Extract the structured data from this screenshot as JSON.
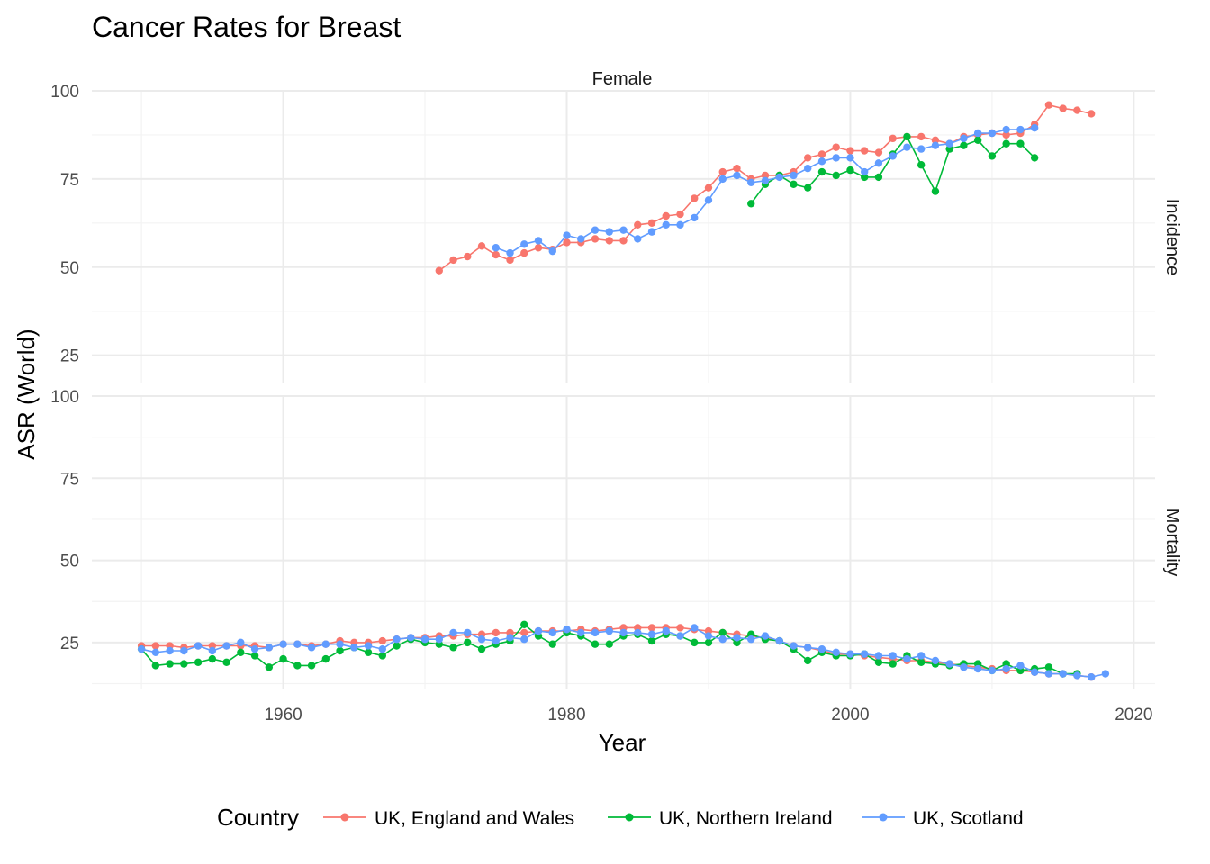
{
  "chart_data": {
    "type": "line",
    "title": "Cancer Rates for Breast",
    "xlabel": "Year",
    "ylabel": "ASR (World)",
    "column_strip": "Female",
    "legend_title": "Country",
    "legend_position": "bottom",
    "grid": true,
    "xlim": [
      1946.5,
      2021.5
    ],
    "xticks": [
      1960,
      1980,
      2000,
      2020
    ],
    "xtick_labels": [
      "1960",
      "1980",
      "2000",
      "2020"
    ],
    "colors": {
      "UK, England and Wales": "#F8766D",
      "UK, Northern Ireland": "#00BA38",
      "UK, Scotland": "#619CFF"
    },
    "panels": [
      {
        "strip": "Incidence",
        "ylim": [
          17,
          100
        ],
        "yticks": [
          25,
          50,
          75,
          100
        ],
        "ytick_labels": [
          "25",
          "50",
          "75",
          "100"
        ],
        "series": [
          {
            "name": "UK, England and Wales",
            "x": [
              1971,
              1972,
              1973,
              1974,
              1975,
              1976,
              1977,
              1978,
              1979,
              1980,
              1981,
              1982,
              1983,
              1984,
              1985,
              1986,
              1987,
              1988,
              1989,
              1990,
              1991,
              1992,
              1993,
              1994,
              1995,
              1996,
              1997,
              1998,
              1999,
              2000,
              2001,
              2002,
              2003,
              2004,
              2005,
              2006,
              2007,
              2008,
              2009,
              2010,
              2011,
              2012,
              2013,
              2014,
              2015,
              2016,
              2017
            ],
            "values": [
              49,
              52,
              53,
              56,
              53.5,
              52,
              54,
              55.5,
              55,
              57,
              57,
              58,
              57.5,
              57.5,
              62,
              62.5,
              64.5,
              65,
              69.5,
              72.5,
              77,
              78,
              75,
              76,
              76,
              77,
              81,
              82,
              84,
              83,
              83,
              82.5,
              86.5,
              87,
              87,
              86,
              85,
              87,
              87.5,
              88,
              87.5,
              88,
              90.5,
              96,
              95,
              94.5,
              93.5
            ]
          },
          {
            "name": "UK, Northern Ireland",
            "x": [
              1993,
              1994,
              1995,
              1996,
              1997,
              1998,
              1999,
              2000,
              2001,
              2002,
              2003,
              2004,
              2005,
              2006,
              2007,
              2008,
              2009,
              2010,
              2011,
              2012,
              2013
            ],
            "values": [
              68,
              73.5,
              76,
              73.5,
              72.5,
              77,
              76,
              77.5,
              75.5,
              75.5,
              82,
              87,
              79,
              71.5,
              83.5,
              84.5,
              86,
              81.5,
              85,
              85,
              81
            ]
          },
          {
            "name": "UK, Scotland",
            "x": [
              1975,
              1976,
              1977,
              1978,
              1979,
              1980,
              1981,
              1982,
              1983,
              1984,
              1985,
              1986,
              1987,
              1988,
              1989,
              1990,
              1991,
              1992,
              1993,
              1994,
              1995,
              1996,
              1997,
              1998,
              1999,
              2000,
              2001,
              2002,
              2003,
              2004,
              2005,
              2006,
              2007,
              2008,
              2009,
              2010,
              2011,
              2012,
              2013
            ],
            "values": [
              55.5,
              54,
              56.5,
              57.5,
              54.5,
              59,
              58,
              60.5,
              60,
              60.5,
              58,
              60,
              62,
              62,
              64,
              69,
              75,
              76,
              74,
              74.5,
              75.5,
              76,
              78,
              80,
              81,
              81,
              77,
              79.5,
              81.5,
              84,
              83.5,
              84.5,
              85,
              86.5,
              88,
              88,
              89,
              89,
              89.5
            ]
          }
        ]
      },
      {
        "strip": "Mortality",
        "ylim": [
          11,
          100
        ],
        "yticks": [
          25,
          50,
          75,
          100
        ],
        "ytick_labels": [
          "25",
          "50",
          "75",
          "100"
        ],
        "series": [
          {
            "name": "UK, England and Wales",
            "x": [
              1950,
              1951,
              1952,
              1953,
              1954,
              1955,
              1956,
              1957,
              1958,
              1959,
              1960,
              1961,
              1962,
              1963,
              1964,
              1965,
              1966,
              1967,
              1968,
              1969,
              1970,
              1971,
              1972,
              1973,
              1974,
              1975,
              1976,
              1977,
              1978,
              1979,
              1980,
              1981,
              1982,
              1983,
              1984,
              1985,
              1986,
              1987,
              1988,
              1989,
              1990,
              1991,
              1992,
              1993,
              1994,
              1995,
              1996,
              1997,
              1998,
              1999,
              2000,
              2001,
              2002,
              2003,
              2004,
              2005,
              2006,
              2007,
              2008,
              2009,
              2010,
              2011,
              2012,
              2013,
              2014,
              2015,
              2016,
              2017
            ],
            "values": [
              24,
              24,
              24,
              23.5,
              24,
              24,
              24,
              24,
              24,
              23.5,
              24.5,
              24.5,
              24,
              24.5,
              25.5,
              25,
              25,
              25.5,
              26,
              26.5,
              26.5,
              27,
              27,
              27.5,
              27.5,
              28,
              28,
              28,
              28.5,
              28.5,
              28.5,
              29,
              28.5,
              29,
              29.5,
              29.5,
              29.5,
              29.5,
              29.5,
              29,
              28.5,
              28,
              27.5,
              27,
              26.5,
              25.5,
              24,
              23.5,
              22.5,
              21.5,
              21.5,
              21,
              20.5,
              20,
              19.5,
              19.5,
              19,
              18.5,
              18,
              17.5,
              17,
              16.5,
              16.5,
              16,
              15.5,
              15.5,
              15,
              14.5
            ]
          },
          {
            "name": "UK, Northern Ireland",
            "x": [
              1950,
              1951,
              1952,
              1953,
              1954,
              1955,
              1956,
              1957,
              1958,
              1959,
              1960,
              1961,
              1962,
              1963,
              1964,
              1965,
              1966,
              1967,
              1968,
              1969,
              1970,
              1971,
              1972,
              1973,
              1974,
              1975,
              1976,
              1977,
              1978,
              1979,
              1980,
              1981,
              1982,
              1983,
              1984,
              1985,
              1986,
              1987,
              1988,
              1989,
              1990,
              1991,
              1992,
              1993,
              1994,
              1995,
              1996,
              1997,
              1998,
              1999,
              2000,
              2001,
              2002,
              2003,
              2004,
              2005,
              2006,
              2007,
              2008,
              2009,
              2010,
              2011,
              2012,
              2013,
              2014,
              2015,
              2016
            ],
            "values": [
              23,
              18,
              18.5,
              18.5,
              19,
              20,
              19,
              22,
              21,
              17.5,
              20,
              18,
              18,
              20,
              22.5,
              23.5,
              22,
              21,
              24,
              26,
              25,
              24.5,
              23.5,
              25,
              23,
              24.5,
              25.5,
              30.5,
              27,
              24.5,
              28,
              27,
              24.5,
              24.5,
              27,
              27.5,
              25.5,
              27.5,
              27,
              25,
              25,
              28,
              25,
              27.5,
              26,
              25.5,
              23,
              19.5,
              22,
              21,
              21,
              21.5,
              19,
              18.5,
              21,
              19,
              18.5,
              18,
              18.5,
              18.5,
              16.5,
              18.5,
              16.5,
              17,
              17.5,
              15.5,
              15.5
            ]
          },
          {
            "name": "UK, Scotland",
            "x": [
              1950,
              1951,
              1952,
              1953,
              1954,
              1955,
              1956,
              1957,
              1958,
              1959,
              1960,
              1961,
              1962,
              1963,
              1964,
              1965,
              1966,
              1967,
              1968,
              1969,
              1970,
              1971,
              1972,
              1973,
              1974,
              1975,
              1976,
              1977,
              1978,
              1979,
              1980,
              1981,
              1982,
              1983,
              1984,
              1985,
              1986,
              1987,
              1988,
              1989,
              1990,
              1991,
              1992,
              1993,
              1994,
              1995,
              1996,
              1997,
              1998,
              1999,
              2000,
              2001,
              2002,
              2003,
              2004,
              2005,
              2006,
              2007,
              2008,
              2009,
              2010,
              2011,
              2012,
              2013,
              2014,
              2015,
              2016,
              2017,
              2018
            ],
            "values": [
              23,
              22,
              22.5,
              22.5,
              24,
              22.5,
              24,
              25,
              23,
              23.5,
              24.5,
              24.5,
              23.5,
              24.5,
              24.5,
              23.5,
              24,
              23,
              26,
              26.5,
              26,
              26,
              28,
              28,
              26,
              25.5,
              26.5,
              26,
              28.5,
              28,
              29,
              28,
              28,
              28.5,
              28,
              28,
              27.5,
              28.5,
              27,
              29.5,
              27,
              26,
              26.5,
              26,
              27,
              25.5,
              24,
              23.5,
              23,
              22,
              21.5,
              21.5,
              21,
              21,
              20,
              21,
              19.5,
              18.5,
              17.5,
              17,
              16.5,
              17,
              18,
              16,
              15.5,
              15.5,
              15,
              14.5,
              15.5
            ]
          }
        ]
      }
    ]
  }
}
